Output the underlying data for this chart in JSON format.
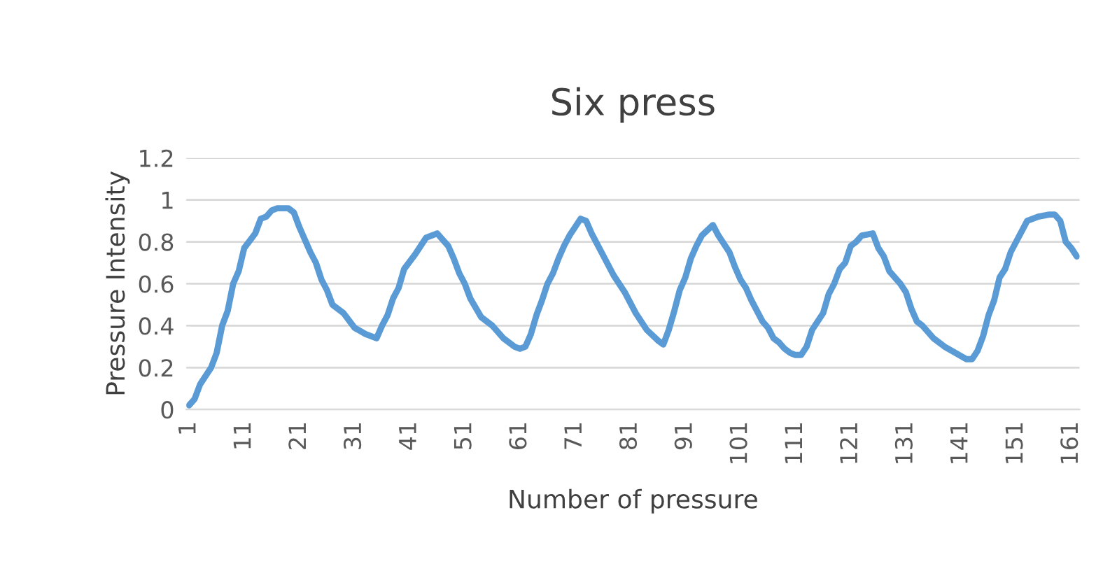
{
  "chart_data": {
    "type": "line",
    "title": "Six press",
    "xlabel": "Number of pressure",
    "ylabel": "Pressure Intensity",
    "x": [
      1,
      2,
      3,
      5,
      6,
      7,
      8,
      9,
      10,
      11,
      13,
      14,
      15,
      16,
      17,
      19,
      20,
      21,
      23,
      24,
      25,
      26,
      27,
      29,
      31,
      33,
      35,
      36,
      37,
      38,
      39,
      40,
      42,
      44,
      46,
      48,
      49,
      50,
      51,
      52,
      54,
      56,
      58,
      60,
      61,
      62,
      63,
      64,
      65,
      66,
      67,
      68,
      69,
      70,
      71,
      72,
      73,
      74,
      76,
      78,
      80,
      82,
      84,
      86,
      87,
      88,
      89,
      90,
      91,
      92,
      93,
      94,
      96,
      97,
      98,
      99,
      100,
      101,
      102,
      103,
      104,
      105,
      106,
      107,
      108,
      109,
      110,
      111,
      112,
      113,
      114,
      116,
      117,
      118,
      119,
      120,
      121,
      122,
      123,
      125,
      126,
      127,
      128,
      130,
      131,
      132,
      133,
      134,
      136,
      138,
      140,
      142,
      143,
      144,
      145,
      146,
      147,
      148,
      149,
      150,
      151,
      152,
      153,
      155,
      157,
      158,
      159,
      160,
      161,
      162
    ],
    "series": [
      {
        "color": "#5b9bd5",
        "values": [
          0.02,
          0.05,
          0.12,
          0.2,
          0.27,
          0.4,
          0.47,
          0.6,
          0.66,
          0.77,
          0.84,
          0.91,
          0.92,
          0.95,
          0.96,
          0.96,
          0.94,
          0.87,
          0.75,
          0.7,
          0.62,
          0.57,
          0.5,
          0.46,
          0.39,
          0.36,
          0.34,
          0.4,
          0.45,
          0.53,
          0.58,
          0.67,
          0.74,
          0.82,
          0.84,
          0.78,
          0.72,
          0.65,
          0.6,
          0.53,
          0.44,
          0.4,
          0.34,
          0.3,
          0.29,
          0.3,
          0.36,
          0.45,
          0.52,
          0.6,
          0.65,
          0.72,
          0.78,
          0.83,
          0.87,
          0.91,
          0.9,
          0.84,
          0.74,
          0.64,
          0.56,
          0.46,
          0.38,
          0.33,
          0.31,
          0.38,
          0.47,
          0.57,
          0.63,
          0.72,
          0.78,
          0.83,
          0.88,
          0.83,
          0.79,
          0.75,
          0.68,
          0.62,
          0.58,
          0.52,
          0.47,
          0.42,
          0.39,
          0.34,
          0.32,
          0.29,
          0.27,
          0.26,
          0.26,
          0.3,
          0.38,
          0.46,
          0.55,
          0.6,
          0.67,
          0.7,
          0.78,
          0.8,
          0.83,
          0.84,
          0.77,
          0.73,
          0.66,
          0.6,
          0.56,
          0.48,
          0.42,
          0.4,
          0.34,
          0.3,
          0.27,
          0.24,
          0.24,
          0.28,
          0.35,
          0.45,
          0.52,
          0.63,
          0.67,
          0.75,
          0.8,
          0.85,
          0.9,
          0.92,
          0.93,
          0.93,
          0.9,
          0.8,
          0.77,
          0.73
        ]
      }
    ],
    "xlim": [
      0.5,
      162.5
    ],
    "xticks": [
      1,
      11,
      21,
      31,
      41,
      51,
      61,
      71,
      81,
      91,
      101,
      111,
      121,
      131,
      141,
      151,
      161
    ],
    "ylim": [
      0,
      1.2
    ],
    "yticks": [
      0,
      0.2,
      0.4,
      0.6,
      0.8,
      1,
      1.2
    ],
    "grid": "y",
    "marker": "none",
    "line_style": "solid"
  }
}
